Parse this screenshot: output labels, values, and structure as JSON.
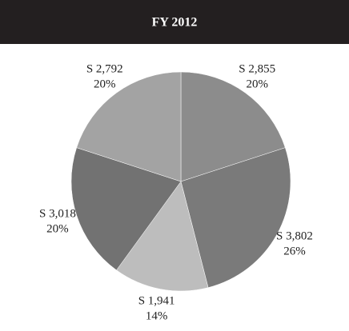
{
  "chart_data": {
    "type": "pie",
    "title": "FY 2012",
    "categories": [
      "S 2,855",
      "S 3,802",
      "S 1,941",
      "S 3,018",
      "S 2,792"
    ],
    "values": [
      20,
      26,
      14,
      20,
      20
    ],
    "value_labels": [
      "20%",
      "26%",
      "14%",
      "20%",
      "20%"
    ],
    "colors": [
      "#8c8c8c",
      "#7a7a7a",
      "#bdbdbd",
      "#727272",
      "#a3a3a3"
    ]
  }
}
